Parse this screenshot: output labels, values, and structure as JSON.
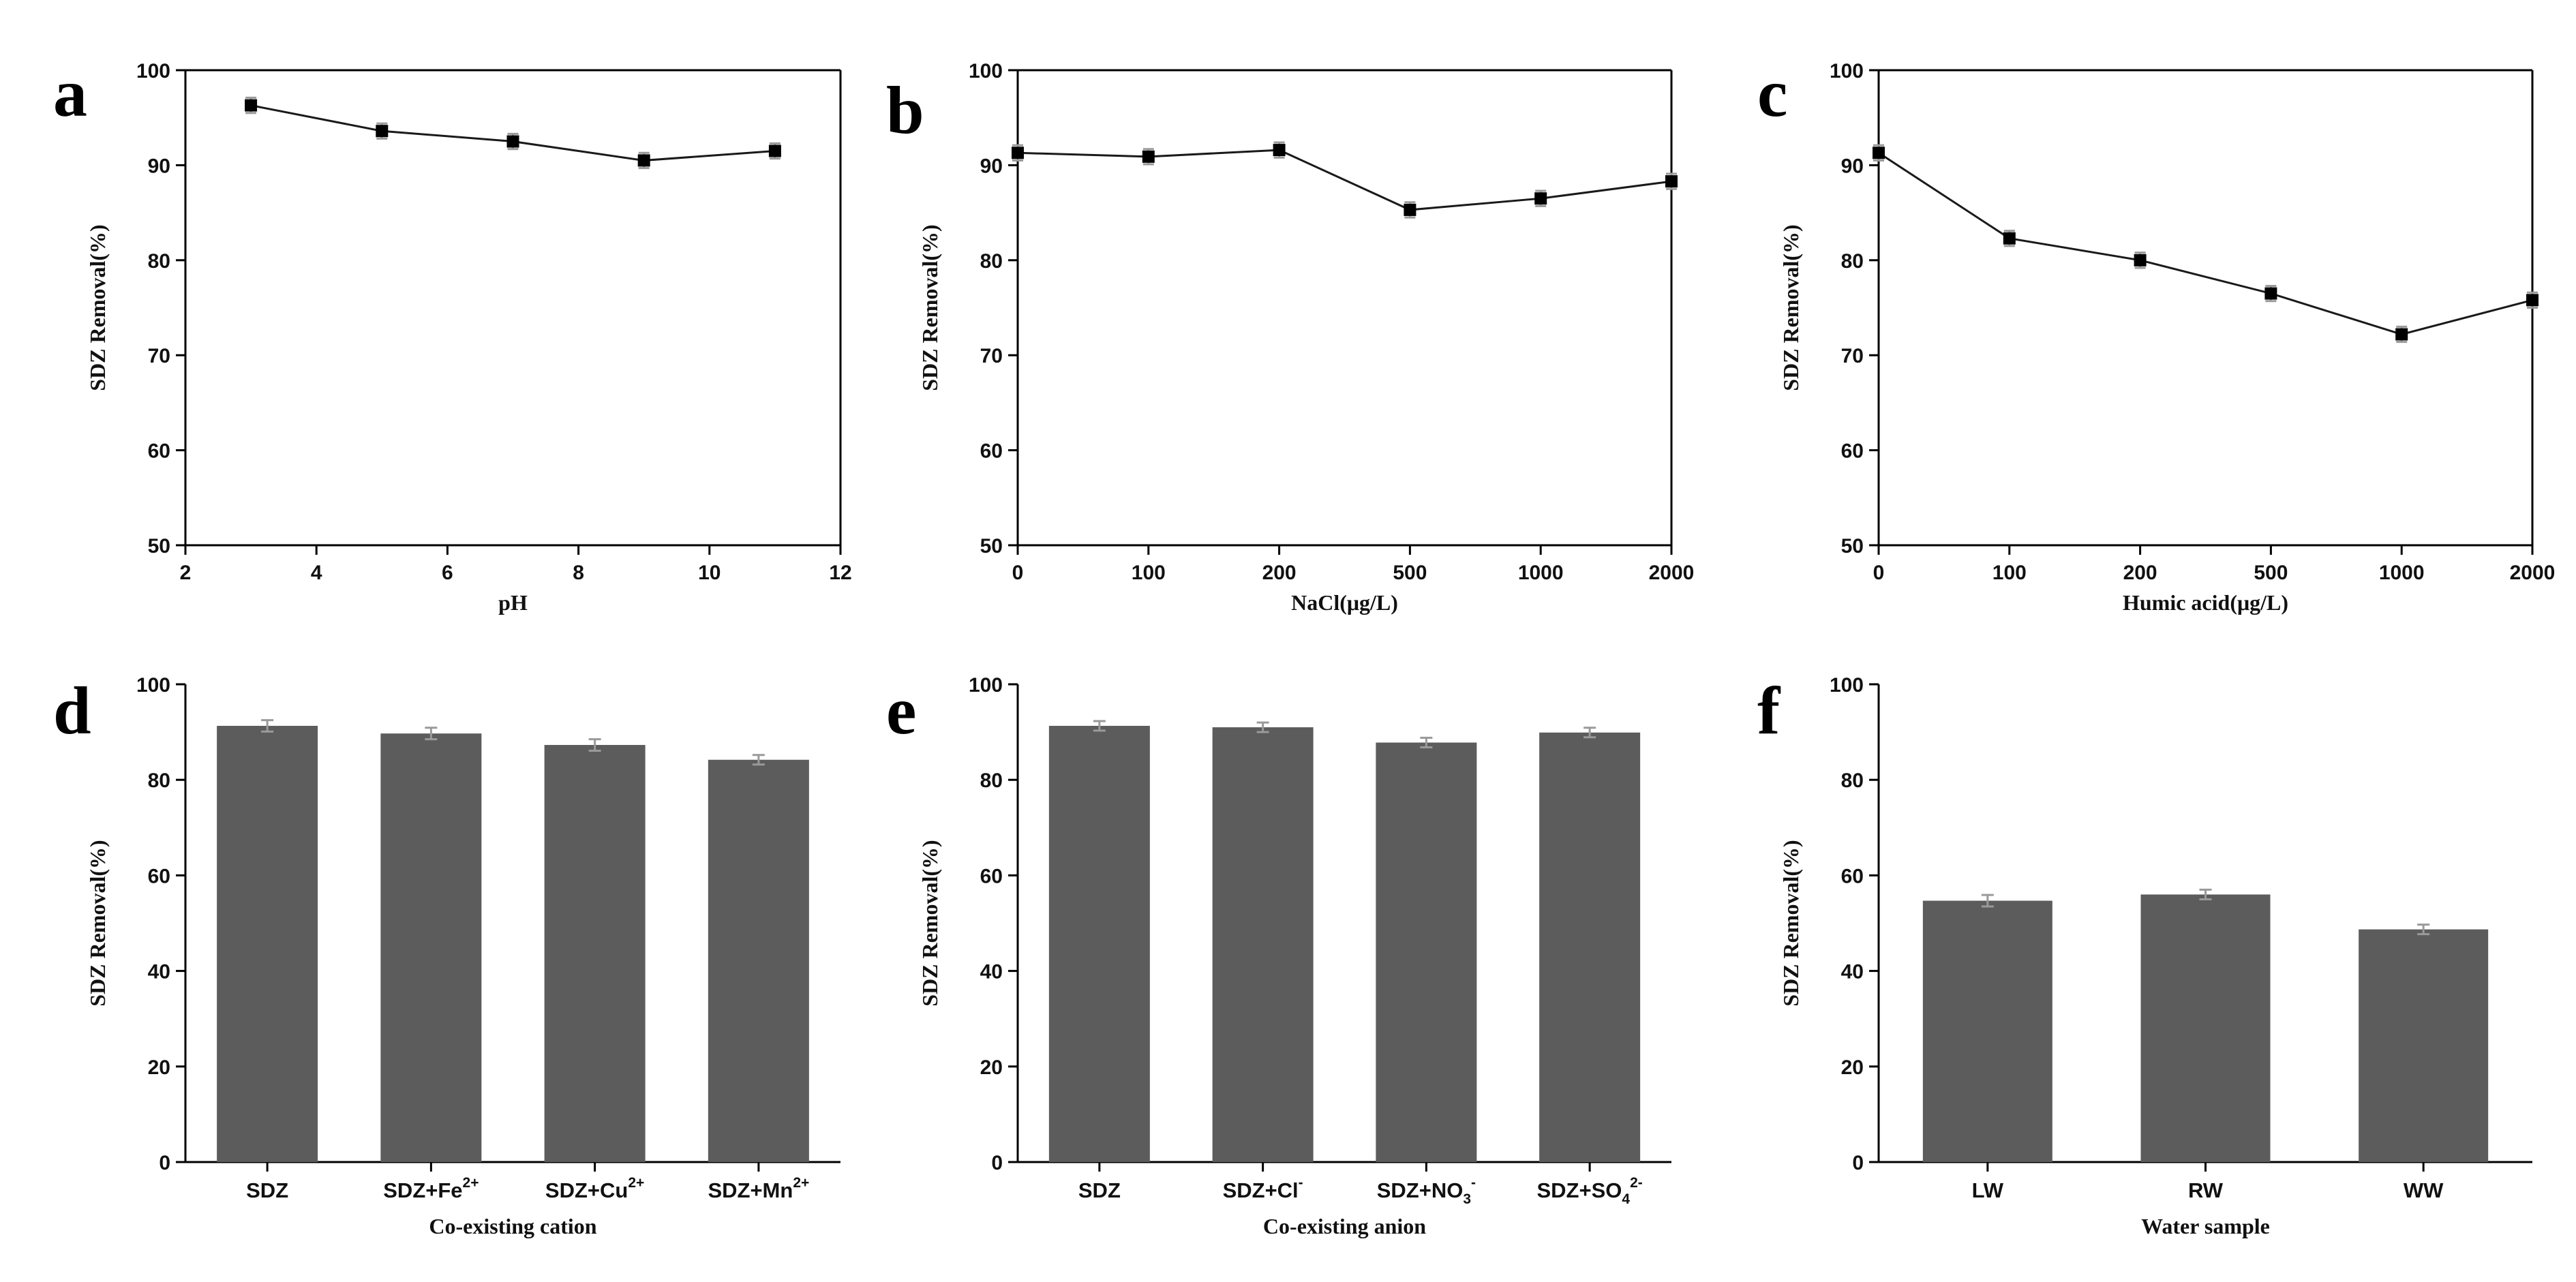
{
  "figure": {
    "background": "#ffffff",
    "bar_color": "#5c5c5c",
    "line_color": "#1a1a1a",
    "errorbar_color": "#9a9a9a"
  },
  "chart_data": [
    {
      "panel": "a",
      "type": "line",
      "xaxis_kind": "numeric",
      "x": [
        3,
        5,
        7,
        9,
        11
      ],
      "values": [
        96.3,
        93.6,
        92.5,
        90.5,
        91.5
      ],
      "errors": [
        0.8,
        0.8,
        0.8,
        0.8,
        0.8
      ],
      "xlim": [
        2,
        12
      ],
      "xticks": [
        2,
        4,
        6,
        8,
        10,
        12
      ],
      "ylim": [
        50,
        100
      ],
      "yticks": [
        50,
        60,
        70,
        80,
        90,
        100
      ],
      "xlabel": "pH",
      "ylabel": "SDZ Removal(%)"
    },
    {
      "panel": "b",
      "type": "line",
      "xaxis_kind": "category",
      "categories": [
        "0",
        "100",
        "200",
        "500",
        "1000",
        "2000"
      ],
      "values": [
        91.3,
        90.9,
        91.6,
        85.3,
        86.5,
        88.3
      ],
      "errors": [
        0.8,
        0.8,
        0.8,
        0.8,
        0.8,
        0.8
      ],
      "ylim": [
        50,
        100
      ],
      "yticks": [
        50,
        60,
        70,
        80,
        90,
        100
      ],
      "xlabel": "NaCl(μg/L)",
      "ylabel": "SDZ Removal(%)"
    },
    {
      "panel": "c",
      "type": "line",
      "xaxis_kind": "category",
      "categories": [
        "0",
        "100",
        "200",
        "500",
        "1000",
        "2000"
      ],
      "values": [
        91.3,
        82.3,
        80.0,
        76.5,
        72.2,
        75.8
      ],
      "errors": [
        0.8,
        0.8,
        0.8,
        0.8,
        0.8,
        0.8
      ],
      "ylim": [
        50,
        100
      ],
      "yticks": [
        50,
        60,
        70,
        80,
        90,
        100
      ],
      "xlabel": "Humic acid(μg/L)",
      "ylabel": "SDZ Removal(%)"
    },
    {
      "panel": "d",
      "type": "bar",
      "categories": [
        {
          "base": "SDZ",
          "sup": "",
          "sub": ""
        },
        {
          "base": "SDZ+Fe",
          "sup": "2+",
          "sub": ""
        },
        {
          "base": "SDZ+Cu",
          "sup": "2+",
          "sub": ""
        },
        {
          "base": "SDZ+Mn",
          "sup": "2+",
          "sub": ""
        }
      ],
      "values": [
        91.3,
        89.7,
        87.3,
        84.2
      ],
      "errors": [
        1.2,
        1.2,
        1.2,
        1.0
      ],
      "ylim": [
        0,
        100
      ],
      "yticks": [
        0,
        20,
        40,
        60,
        80,
        100
      ],
      "xlabel": "Co-existing cation",
      "ylabel": "SDZ Removal(%)"
    },
    {
      "panel": "e",
      "type": "bar",
      "categories": [
        {
          "base": "SDZ",
          "sup": "",
          "sub": ""
        },
        {
          "base": "SDZ+Cl",
          "sup": "-",
          "sub": ""
        },
        {
          "base": "SDZ+NO",
          "sup": "-",
          "sub": "3"
        },
        {
          "base": "SDZ+SO",
          "sup": "2-",
          "sub": "4"
        }
      ],
      "values": [
        91.3,
        91.0,
        87.8,
        89.9
      ],
      "errors": [
        1.0,
        1.0,
        1.0,
        1.0
      ],
      "ylim": [
        0,
        100
      ],
      "yticks": [
        0,
        20,
        40,
        60,
        80,
        100
      ],
      "xlabel": "Co-existing anion",
      "ylabel": "SDZ Removal(%)"
    },
    {
      "panel": "f",
      "type": "bar",
      "categories": [
        {
          "base": "LW",
          "sup": "",
          "sub": ""
        },
        {
          "base": "RW",
          "sup": "",
          "sub": ""
        },
        {
          "base": "WW",
          "sup": "",
          "sub": ""
        }
      ],
      "values": [
        54.7,
        56.0,
        48.7
      ],
      "errors": [
        1.2,
        1.0,
        1.0
      ],
      "ylim": [
        0,
        100
      ],
      "yticks": [
        0,
        20,
        40,
        60,
        80,
        100
      ],
      "xlabel": "Water sample",
      "ylabel": "SDZ Removal(%)"
    }
  ]
}
